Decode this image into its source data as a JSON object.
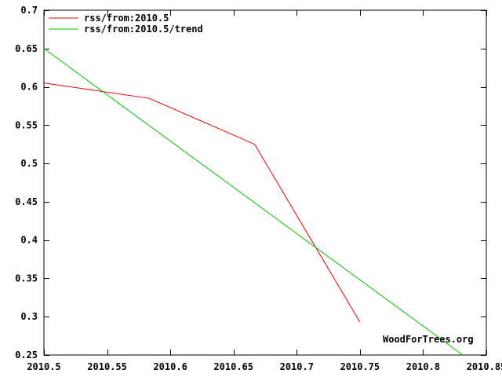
{
  "chart_data": {
    "type": "line",
    "title": "",
    "xlabel": "",
    "ylabel": "",
    "source_label": "WoodForTrees.org",
    "xlim": [
      2010.5,
      2010.85
    ],
    "ylim": [
      0.25,
      0.7
    ],
    "xticks": [
      2010.5,
      2010.55,
      2010.6,
      2010.65,
      2010.7,
      2010.75,
      2010.8,
      2010.85
    ],
    "xtick_labels": [
      "2010.5",
      "2010.55",
      "2010.6",
      "2010.65",
      "2010.7",
      "2010.75",
      "2010.8",
      "2010.85"
    ],
    "yticks": [
      0.25,
      0.3,
      0.35,
      0.4,
      0.45,
      0.5,
      0.55,
      0.6,
      0.65,
      0.7
    ],
    "ytick_labels": [
      "0.25",
      "0.3",
      "0.35",
      "0.4",
      "0.45",
      "0.5",
      "0.55",
      "0.6",
      "0.65",
      "0.7"
    ],
    "grid": false,
    "legend_position": "top-left-inside",
    "background_color": "#ffffff",
    "axis_color": "#000000",
    "series": [
      {
        "name": "rss/from:2010.5",
        "color": "#ee0000",
        "x": [
          2010.5,
          2010.5833,
          2010.6667,
          2010.75
        ],
        "y": [
          0.605,
          0.585,
          0.525,
          0.293
        ]
      },
      {
        "name": "rss/from:2010.5/trend",
        "color": "#00c000",
        "x": [
          2010.5,
          2010.8313
        ],
        "y": [
          0.65,
          0.25
        ]
      }
    ]
  }
}
